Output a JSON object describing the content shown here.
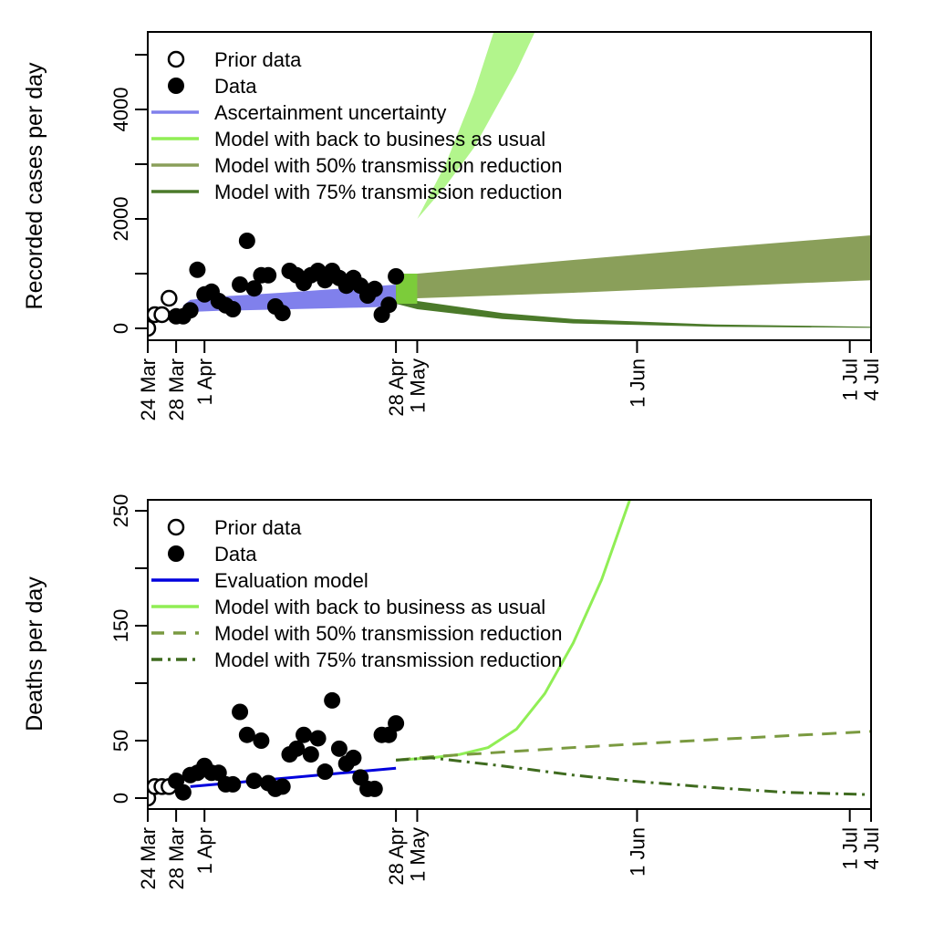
{
  "chart_data": [
    {
      "type": "scatter+area",
      "ylabel": "Recorded cases per day",
      "x_unit": "days since 24 Mar",
      "x_ticks": [
        {
          "day": 0,
          "label": "24 Mar"
        },
        {
          "day": 4,
          "label": "28 Mar"
        },
        {
          "day": 8,
          "label": "1 Apr"
        },
        {
          "day": 35,
          "label": "28 Apr"
        },
        {
          "day": 38,
          "label": "1 May"
        },
        {
          "day": 69,
          "label": "1 Jun"
        },
        {
          "day": 99,
          "label": "1 Jul"
        },
        {
          "day": 102,
          "label": "4 Jul"
        }
      ],
      "xlim": [
        0,
        102
      ],
      "ylim": [
        -200,
        5400
      ],
      "y_ticks": [
        0,
        1000,
        2000,
        3000,
        4000,
        5000
      ],
      "y_tick_labels": [
        "0",
        "",
        "2000",
        "",
        "4000",
        ""
      ],
      "legend": [
        "Prior data",
        "Data",
        "Ascertainment uncertainty",
        "Model with back to business as usual",
        "Model with 50% transmission reduction",
        "Model with 75% transmission reduction"
      ],
      "legend_position": "top-left",
      "prior_data": {
        "x": [
          0,
          1,
          2,
          3
        ],
        "y": [
          0,
          250,
          250,
          550
        ]
      },
      "data": {
        "x": [
          4,
          5,
          6,
          7,
          8,
          9,
          10,
          11,
          12,
          13,
          14,
          15,
          16,
          17,
          18,
          19,
          20,
          21,
          22,
          23,
          24,
          25,
          26,
          27,
          28,
          29,
          30,
          31,
          32,
          33,
          34,
          35
        ],
        "y": [
          220,
          220,
          330,
          1070,
          620,
          670,
          500,
          420,
          350,
          800,
          1600,
          730,
          970,
          970,
          400,
          280,
          1050,
          970,
          830,
          970,
          1050,
          880,
          1050,
          920,
          780,
          920,
          780,
          600,
          720,
          250,
          430,
          950
        ]
      },
      "ascertainment": {
        "x": [
          5,
          6,
          10,
          20,
          30,
          35
        ],
        "lower": [
          280,
          300,
          320,
          350,
          380,
          400
        ],
        "upper": [
          420,
          520,
          580,
          660,
          750,
          800
        ]
      },
      "bau": {
        "x": [
          36,
          38,
          42,
          46,
          49,
          52,
          56,
          60
        ],
        "lower": [
          1000,
          2000,
          2600,
          3300,
          4000,
          4700,
          5800,
          7000
        ],
        "upper": [
          1000,
          2000,
          3000,
          4300,
          5500,
          7000,
          9000,
          12000
        ]
      },
      "r50": {
        "x": [
          35,
          38,
          60,
          80,
          102
        ],
        "lower": [
          500,
          550,
          650,
          760,
          880
        ],
        "upper": [
          1000,
          1000,
          1250,
          1470,
          1700
        ]
      },
      "r75": {
        "x": [
          35,
          38,
          50,
          60,
          80,
          102
        ],
        "lower": [
          450,
          350,
          170,
          90,
          30,
          10
        ],
        "upper": [
          1000,
          500,
          280,
          170,
          70,
          30
        ]
      },
      "colors": {
        "ascertainment": "#8080ec",
        "bau": "#b2f58c",
        "r50": "#8a9f5a",
        "r75": "#4b7a2a"
      }
    },
    {
      "type": "scatter+line",
      "ylabel": "Deaths per day",
      "x_ticks": [
        {
          "day": 0,
          "label": "24 Mar"
        },
        {
          "day": 4,
          "label": "28 Mar"
        },
        {
          "day": 8,
          "label": "1 Apr"
        },
        {
          "day": 35,
          "label": "28 Apr"
        },
        {
          "day": 38,
          "label": "1 May"
        },
        {
          "day": 69,
          "label": "1 Jun"
        },
        {
          "day": 99,
          "label": "1 Jul"
        },
        {
          "day": 102,
          "label": "4 Jul"
        }
      ],
      "xlim": [
        0,
        102
      ],
      "ylim": [
        -10,
        260
      ],
      "y_ticks": [
        0,
        50,
        100,
        150,
        200,
        250
      ],
      "y_tick_labels": [
        "0",
        "50",
        "",
        "150",
        "",
        "250"
      ],
      "legend": [
        "Prior data",
        "Data",
        "Evaluation model",
        "Model with back to business as usual",
        "Model with 50% transmission reduction",
        "Model with 75% transmission reduction"
      ],
      "legend_position": "top-left",
      "prior_data": {
        "x": [
          0,
          1,
          2,
          3
        ],
        "y": [
          0,
          10,
          10,
          10
        ]
      },
      "data": {
        "x": [
          4,
          5,
          6,
          7,
          8,
          9,
          10,
          11,
          12,
          13,
          14,
          15,
          16,
          17,
          18,
          19,
          20,
          21,
          22,
          23,
          24,
          25,
          26,
          27,
          28,
          29,
          30,
          31,
          32,
          33,
          34,
          35
        ],
        "y": [
          15,
          5,
          20,
          22,
          28,
          22,
          22,
          12,
          12,
          75,
          55,
          15,
          50,
          13,
          8,
          10,
          38,
          43,
          55,
          38,
          52,
          23,
          85,
          43,
          30,
          35,
          18,
          8,
          8,
          55,
          55,
          65
        ]
      },
      "evaluation": {
        "x": [
          6,
          35
        ],
        "y": [
          10,
          26
        ]
      },
      "bau": {
        "x": [
          35,
          40,
          44,
          48,
          52,
          56,
          60,
          64,
          68,
          70
        ],
        "y": [
          33,
          35,
          38,
          44,
          60,
          91,
          135,
          190,
          260,
          300
        ]
      },
      "r50": {
        "x": [
          35,
          40,
          60,
          80,
          102
        ],
        "y": [
          33,
          36,
          44,
          51,
          58
        ]
      },
      "r75": {
        "x": [
          35,
          40,
          50,
          60,
          68,
          80,
          90,
          102
        ],
        "y": [
          33,
          35,
          28,
          20,
          15,
          9,
          5,
          3
        ]
      },
      "colors": {
        "evaluation": "#0000dd",
        "bau": "#90ee55",
        "r50": "#7a9a40",
        "r75": "#3f6b1f"
      }
    }
  ]
}
